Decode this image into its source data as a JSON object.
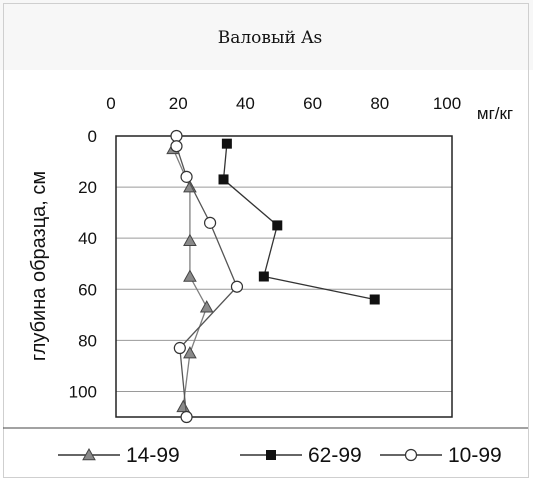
{
  "chart_data": {
    "type": "line",
    "title": "Валовый As",
    "xlabel": "",
    "ylabel": "глубина образца, см",
    "unit_label": "мг/кг",
    "x_axis_position": "top",
    "y_inverted": true,
    "xlim": [
      0,
      100
    ],
    "ylim": [
      0,
      110
    ],
    "x_ticks": [
      0,
      20,
      40,
      60,
      80,
      100
    ],
    "y_ticks": [
      0,
      20,
      40,
      60,
      80,
      100
    ],
    "grid": "horizontal",
    "legend_position": "bottom",
    "series": [
      {
        "name": "14-99",
        "marker": "triangle",
        "color": "#7f7f7f",
        "points": [
          {
            "x": 17,
            "y": 5
          },
          {
            "x": 22,
            "y": 20
          },
          {
            "x": 22,
            "y": 41
          },
          {
            "x": 22,
            "y": 55
          },
          {
            "x": 27,
            "y": 67
          },
          {
            "x": 22,
            "y": 85
          },
          {
            "x": 20,
            "y": 106
          }
        ]
      },
      {
        "name": "62-99",
        "marker": "square",
        "color": "#333333",
        "points": [
          {
            "x": 33,
            "y": 3
          },
          {
            "x": 32,
            "y": 17
          },
          {
            "x": 48,
            "y": 35
          },
          {
            "x": 44,
            "y": 55
          },
          {
            "x": 77,
            "y": 64
          }
        ]
      },
      {
        "name": "10-99",
        "marker": "circle",
        "color": "#555555",
        "points": [
          {
            "x": 18,
            "y": 0
          },
          {
            "x": 18,
            "y": 4
          },
          {
            "x": 21,
            "y": 16
          },
          {
            "x": 28,
            "y": 34
          },
          {
            "x": 36,
            "y": 59
          },
          {
            "x": 19,
            "y": 83
          },
          {
            "x": 21,
            "y": 110
          }
        ]
      }
    ]
  }
}
